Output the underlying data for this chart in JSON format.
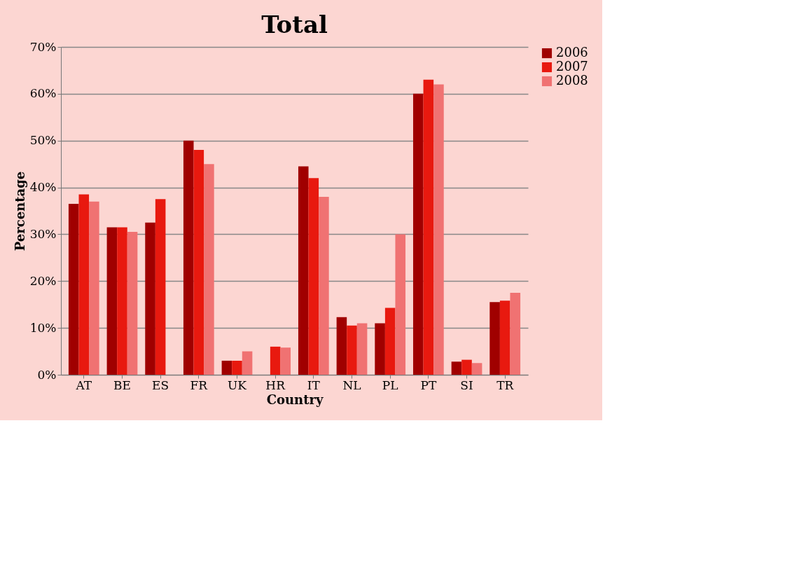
{
  "chart_data": {
    "type": "bar",
    "title": "Total",
    "xlabel": "Country",
    "ylabel": "Percentage",
    "categories": [
      "AT",
      "BE",
      "ES",
      "FR",
      "UK",
      "HR",
      "IT",
      "NL",
      "PL",
      "PT",
      "SI",
      "TR"
    ],
    "series": [
      {
        "name": "2006",
        "color": "#a00000",
        "values": [
          36.5,
          31.5,
          32.5,
          50,
          3,
          0,
          44.5,
          12.3,
          11,
          60,
          2.8,
          15.5
        ]
      },
      {
        "name": "2007",
        "color": "#e8190f",
        "values": [
          38.5,
          31.5,
          37.5,
          48,
          3,
          6,
          42,
          10.5,
          14.3,
          63,
          3.2,
          15.8
        ]
      },
      {
        "name": "2008",
        "color": "#f07272",
        "values": [
          37,
          30.5,
          0,
          45,
          5,
          5.8,
          38,
          11,
          30,
          62,
          2.5,
          17.5
        ]
      }
    ],
    "ylim": [
      0,
      70
    ],
    "yticks": [
      {
        "value": 0,
        "label": "0%"
      },
      {
        "value": 10,
        "label": "10%"
      },
      {
        "value": 20,
        "label": "20%"
      },
      {
        "value": 30,
        "label": "30%"
      },
      {
        "value": 40,
        "label": "40%"
      },
      {
        "value": 50,
        "label": "50%"
      },
      {
        "value": 60,
        "label": "60%"
      },
      {
        "value": 70,
        "label": "70%"
      }
    ],
    "grid": "y",
    "legend": "right"
  }
}
